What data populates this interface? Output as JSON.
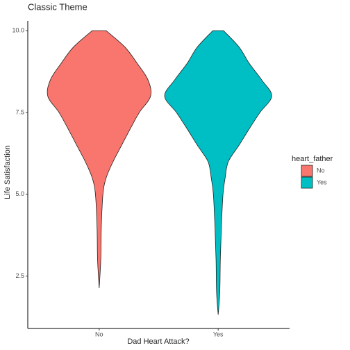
{
  "chart_data": {
    "type": "violin",
    "title": "Classic Theme",
    "x_label": "Dad Heart Attack?",
    "y_label": "Life Satisfaction",
    "categories": [
      "No",
      "Yes"
    ],
    "legend_title": "heart_father",
    "legend_position": "right",
    "series": [
      {
        "name": "No",
        "color": "#F8766D",
        "y": [
          2.13,
          3.0,
          4.0,
          5.0,
          5.5,
          6.0,
          6.5,
          7.0,
          7.5,
          8.0,
          8.5,
          9.0,
          9.5,
          10.0
        ],
        "density": [
          0,
          0.03,
          0.04,
          0.07,
          0.13,
          0.26,
          0.42,
          0.58,
          0.75,
          0.96,
          0.91,
          0.71,
          0.48,
          0.13
        ]
      },
      {
        "name": "Yes",
        "color": "#00BFC4",
        "y": [
          1.32,
          2.0,
          3.0,
          4.0,
          5.0,
          5.5,
          6.0,
          6.5,
          7.0,
          7.5,
          8.0,
          8.5,
          9.0,
          9.5,
          10.0
        ],
        "density": [
          0,
          0.03,
          0.04,
          0.06,
          0.09,
          0.13,
          0.19,
          0.39,
          0.58,
          0.78,
          1.0,
          0.81,
          0.58,
          0.39,
          0.1
        ]
      }
    ],
    "ylim": [
      0.9,
      10.3
    ],
    "yticks": [
      {
        "value": 2.5,
        "label": "2.5"
      },
      {
        "value": 5,
        "label": "5.0"
      },
      {
        "value": 7.5,
        "label": "7.5"
      },
      {
        "value": 10,
        "label": "10.0"
      }
    ],
    "grid": false
  }
}
